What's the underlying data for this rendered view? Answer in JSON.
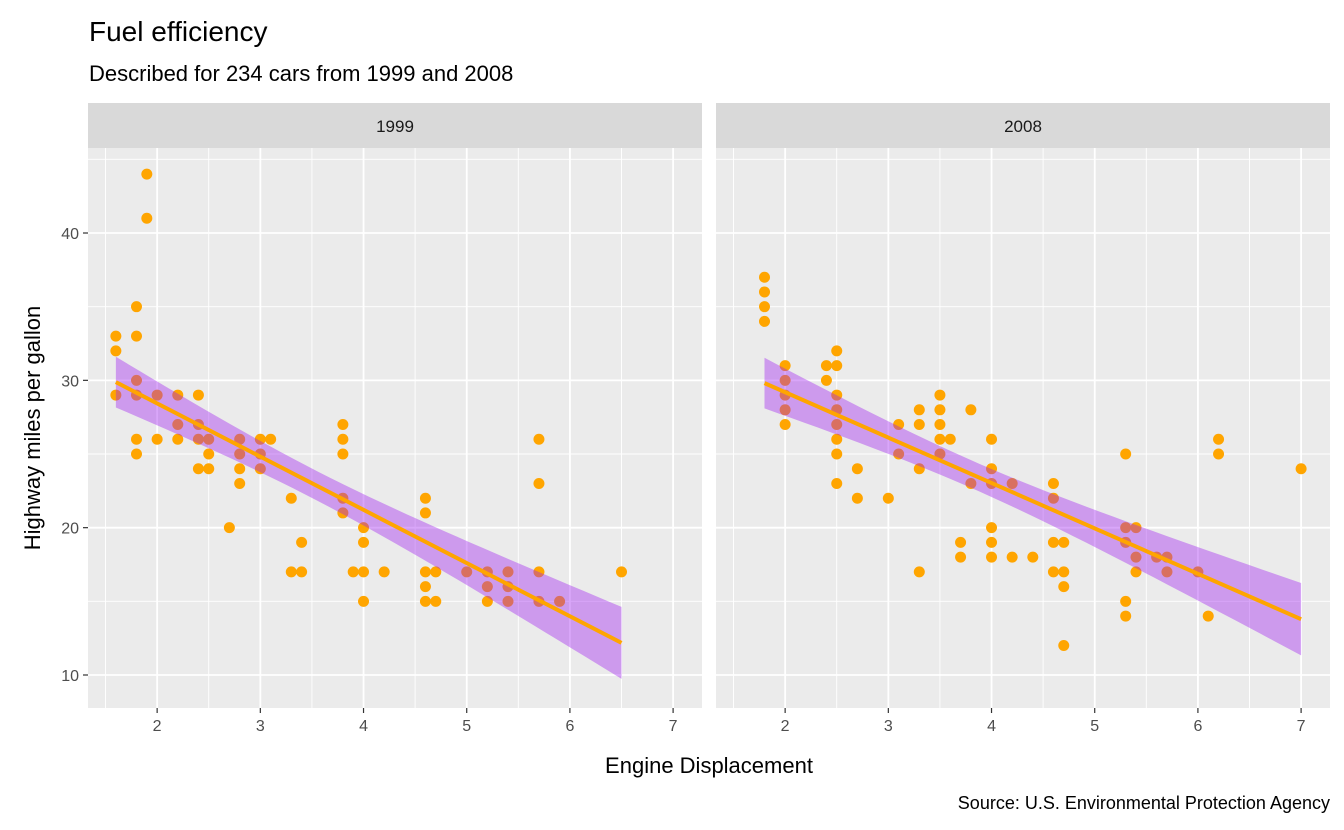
{
  "chart_data": {
    "type": "scatter",
    "title": "Fuel efficiency",
    "subtitle": "Described for 234 cars from 1999 and 2008",
    "xlabel": "Engine Displacement",
    "ylabel": "Highway miles per gallon",
    "caption": "Source: U.S. Environmental Protection Agency",
    "xlim": [
      1.33,
      7.28
    ],
    "ylim": [
      7.76,
      45.77
    ],
    "x_ticks": [
      2,
      3,
      4,
      5,
      6,
      7
    ],
    "y_ticks": [
      10,
      20,
      30,
      40
    ],
    "grid": true,
    "point_color": "#FFA500",
    "line_color": "#FFA500",
    "ribbon_color": "#A020F0",
    "smoothing": "linear model with confidence band",
    "facets": [
      {
        "label": "1999",
        "points": [
          [
            1.6,
            33
          ],
          [
            1.6,
            32
          ],
          [
            1.6,
            29
          ],
          [
            1.8,
            35
          ],
          [
            1.8,
            33
          ],
          [
            1.8,
            30
          ],
          [
            1.8,
            29
          ],
          [
            1.8,
            26
          ],
          [
            1.8,
            25
          ],
          [
            1.9,
            44
          ],
          [
            1.9,
            41
          ],
          [
            2.0,
            29
          ],
          [
            2.0,
            26
          ],
          [
            2.2,
            29
          ],
          [
            2.2,
            27
          ],
          [
            2.2,
            26
          ],
          [
            2.4,
            29
          ],
          [
            2.4,
            27
          ],
          [
            2.4,
            26
          ],
          [
            2.4,
            24
          ],
          [
            2.5,
            26
          ],
          [
            2.5,
            25
          ],
          [
            2.5,
            24
          ],
          [
            2.7,
            20
          ],
          [
            2.8,
            26
          ],
          [
            2.8,
            25
          ],
          [
            2.8,
            24
          ],
          [
            2.8,
            23
          ],
          [
            3.0,
            26
          ],
          [
            3.0,
            25
          ],
          [
            3.0,
            24
          ],
          [
            3.1,
            26
          ],
          [
            3.3,
            22
          ],
          [
            3.3,
            17
          ],
          [
            3.4,
            19
          ],
          [
            3.4,
            17
          ],
          [
            3.8,
            27
          ],
          [
            3.8,
            26
          ],
          [
            3.8,
            25
          ],
          [
            3.8,
            22
          ],
          [
            3.8,
            21
          ],
          [
            3.9,
            17
          ],
          [
            4.0,
            20
          ],
          [
            4.0,
            19
          ],
          [
            4.0,
            17
          ],
          [
            4.0,
            15
          ],
          [
            4.2,
            17
          ],
          [
            4.6,
            22
          ],
          [
            4.6,
            21
          ],
          [
            4.6,
            17
          ],
          [
            4.6,
            16
          ],
          [
            4.6,
            15
          ],
          [
            4.7,
            17
          ],
          [
            4.7,
            15
          ],
          [
            5.0,
            17
          ],
          [
            5.2,
            17
          ],
          [
            5.2,
            16
          ],
          [
            5.2,
            15
          ],
          [
            5.4,
            17
          ],
          [
            5.4,
            16
          ],
          [
            5.4,
            15
          ],
          [
            5.7,
            26
          ],
          [
            5.7,
            23
          ],
          [
            5.7,
            17
          ],
          [
            5.7,
            15
          ],
          [
            5.9,
            15
          ],
          [
            6.5,
            17
          ]
        ]
      },
      {
        "label": "2008",
        "points": [
          [
            1.8,
            37
          ],
          [
            1.8,
            36
          ],
          [
            1.8,
            35
          ],
          [
            1.8,
            34
          ],
          [
            2.0,
            31
          ],
          [
            2.0,
            30
          ],
          [
            2.0,
            29
          ],
          [
            2.0,
            28
          ],
          [
            2.0,
            27
          ],
          [
            2.4,
            31
          ],
          [
            2.4,
            30
          ],
          [
            2.5,
            32
          ],
          [
            2.5,
            31
          ],
          [
            2.5,
            29
          ],
          [
            2.5,
            28
          ],
          [
            2.5,
            27
          ],
          [
            2.5,
            26
          ],
          [
            2.5,
            25
          ],
          [
            2.5,
            23
          ],
          [
            2.7,
            24
          ],
          [
            2.7,
            22
          ],
          [
            3.0,
            22
          ],
          [
            3.1,
            27
          ],
          [
            3.1,
            25
          ],
          [
            3.3,
            28
          ],
          [
            3.3,
            27
          ],
          [
            3.3,
            24
          ],
          [
            3.3,
            17
          ],
          [
            3.5,
            29
          ],
          [
            3.5,
            28
          ],
          [
            3.5,
            27
          ],
          [
            3.5,
            26
          ],
          [
            3.5,
            25
          ],
          [
            3.6,
            26
          ],
          [
            3.7,
            19
          ],
          [
            3.7,
            18
          ],
          [
            3.8,
            28
          ],
          [
            3.8,
            23
          ],
          [
            4.0,
            26
          ],
          [
            4.0,
            24
          ],
          [
            4.0,
            23
          ],
          [
            4.0,
            20
          ],
          [
            4.0,
            19
          ],
          [
            4.0,
            18
          ],
          [
            4.2,
            23
          ],
          [
            4.2,
            18
          ],
          [
            4.4,
            18
          ],
          [
            4.6,
            23
          ],
          [
            4.6,
            22
          ],
          [
            4.6,
            19
          ],
          [
            4.6,
            17
          ],
          [
            4.7,
            19
          ],
          [
            4.7,
            17
          ],
          [
            4.7,
            16
          ],
          [
            4.7,
            12
          ],
          [
            5.3,
            25
          ],
          [
            5.3,
            20
          ],
          [
            5.3,
            19
          ],
          [
            5.3,
            15
          ],
          [
            5.3,
            14
          ],
          [
            5.4,
            20
          ],
          [
            5.4,
            18
          ],
          [
            5.4,
            17
          ],
          [
            5.6,
            18
          ],
          [
            5.7,
            18
          ],
          [
            5.7,
            17
          ],
          [
            6.0,
            17
          ],
          [
            6.1,
            14
          ],
          [
            6.2,
            26
          ],
          [
            6.2,
            25
          ],
          [
            7.0,
            24
          ]
        ]
      }
    ]
  }
}
